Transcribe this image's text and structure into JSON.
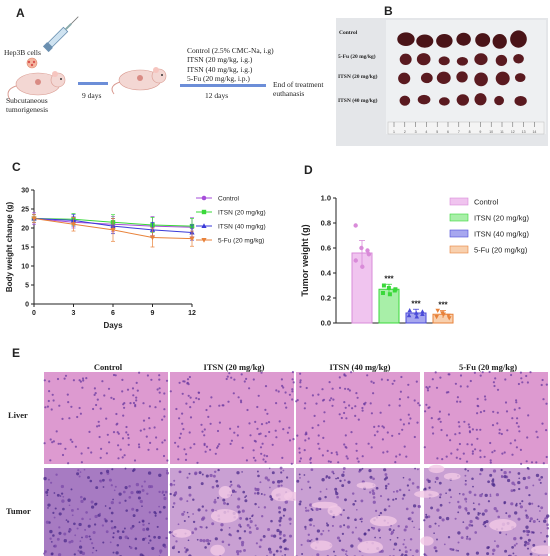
{
  "panels": {
    "A": {
      "letter": "A",
      "cell_label": "Hep3B cells",
      "subcutaneous_line1": "Subcutaneous",
      "subcutaneous_line2": "tumorigenesis",
      "days1": "9 days",
      "treatments": [
        "Control (2.5% CMC-Na, i.g)",
        "ITSN (20 mg/kg, i.g.)",
        "ITSN (40 mg/kg, i.g.)",
        "5-Fu (20 mg/kg, i.p.)"
      ],
      "days2": "12 days",
      "end_line1": "End of treatment",
      "end_line2": "euthanasis"
    },
    "B": {
      "letter": "B",
      "rows": [
        "Control",
        "5-Fu (20 mg/kg)",
        "ITSN (20 mg/kg)",
        "ITSN (40 mg/kg)"
      ],
      "ruler_ticks": [
        "1",
        "2",
        "3",
        "4",
        "5",
        "6",
        "7",
        "8",
        "9",
        "10",
        "11",
        "12",
        "13",
        "14"
      ]
    },
    "C": {
      "letter": "C"
    },
    "D": {
      "letter": "D"
    },
    "E": {
      "letter": "E",
      "columns": [
        "Control",
        "ITSN (20 mg/kg)",
        "ITSN (40 mg/kg)",
        "5-Fu (20 mg/kg)"
      ],
      "rows": [
        "Liver",
        "Tumor"
      ]
    }
  },
  "colors": {
    "control": "#a64dd9",
    "itsn20": "#3ad83a",
    "itsn40": "#3a3ad8",
    "fu": "#e8823a",
    "he_liver": "#d98bc9",
    "he_tumor": "#b886c8"
  },
  "chart_data": [
    {
      "type": "line",
      "panel": "C",
      "xlabel": "Days",
      "ylabel": "Body weight change (g)",
      "x": [
        0,
        3,
        6,
        9,
        12
      ],
      "xlim": [
        0,
        12
      ],
      "ylim": [
        0,
        30
      ],
      "xticks": [
        "0",
        "3",
        "6",
        "9",
        "12"
      ],
      "yticks": [
        "0",
        "5",
        "10",
        "15",
        "20",
        "25",
        "30"
      ],
      "legend_position": "right",
      "series": [
        {
          "name": "Control",
          "values": [
            22.5,
            21.5,
            21,
            20.5,
            20.2
          ],
          "errors": [
            1.5,
            1.5,
            2,
            2.5,
            2.5
          ],
          "marker": "circle",
          "color": "#a64dd9"
        },
        {
          "name": "ITSN (20 mg/kg)",
          "values": [
            22.5,
            22.3,
            21.5,
            20.8,
            20.5
          ],
          "errors": [
            1.0,
            1.5,
            2.0,
            2.0,
            2.0
          ],
          "marker": "square",
          "color": "#3ad83a"
        },
        {
          "name": "ITSN (40 mg/kg)",
          "values": [
            22.5,
            22,
            20.5,
            19.5,
            18.8
          ],
          "errors": [
            1.0,
            1.5,
            2.0,
            2.0,
            2.0
          ],
          "marker": "triangle",
          "color": "#3a3ad8"
        },
        {
          "name": "5-Fu (20 mg/kg)",
          "values": [
            22.5,
            21,
            19.5,
            17.5,
            17.2
          ],
          "errors": [
            1.0,
            1.8,
            3.0,
            2.5,
            2.0
          ],
          "marker": "triangle-down",
          "color": "#e8823a"
        }
      ]
    },
    {
      "type": "bar",
      "panel": "D",
      "ylabel": "Tumor weight (g)",
      "ylim": [
        0,
        1.0
      ],
      "yticks": [
        "0.0",
        "0.2",
        "0.4",
        "0.6",
        "0.8",
        "1.0"
      ],
      "categories": [
        "Control",
        "ITSN (20 mg/kg)",
        "ITSN (40 mg/kg)",
        "5-Fu  (20 mg/kg)"
      ],
      "values": [
        0.56,
        0.27,
        0.08,
        0.07
      ],
      "errors": [
        0.1,
        0.04,
        0.03,
        0.03
      ],
      "points": [
        [
          0.78,
          0.6,
          0.55,
          0.5,
          0.45,
          0.58
        ],
        [
          0.3,
          0.28,
          0.26,
          0.24,
          0.23,
          0.27
        ],
        [
          0.1,
          0.08,
          0.07,
          0.06,
          0.05,
          0.09
        ],
        [
          0.1,
          0.08,
          0.06,
          0.05,
          0.07,
          0.04
        ]
      ],
      "significance": [
        "",
        "***",
        "***",
        "***"
      ],
      "legend_position": "right",
      "fill_colors": [
        "#f0c4ef",
        "#a8efa8",
        "#a7a7ef",
        "#f8d0ae"
      ],
      "edge_colors": [
        "#d98bd9",
        "#3ad83a",
        "#4a4ad8",
        "#e8823a"
      ]
    }
  ]
}
